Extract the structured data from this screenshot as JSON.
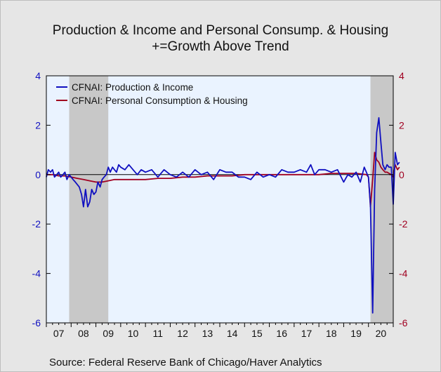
{
  "chart_data": {
    "type": "line",
    "title": "Production & Income and Personal Consump. & Housing",
    "subtitle": "+=Growth Above Trend",
    "source": "Source:  Federal Reserve Bank of Chicago/Haver Analytics",
    "x_tick_labels": [
      "07",
      "08",
      "09",
      "10",
      "11",
      "12",
      "13",
      "14",
      "15",
      "16",
      "17",
      "18",
      "19",
      "20"
    ],
    "xlim": [
      2007.0,
      2021.0
    ],
    "ylim": [
      -6,
      4
    ],
    "y_ticks_left": [
      "4",
      "2",
      "0",
      "-2",
      "-4",
      "-6"
    ],
    "y_ticks_right": [
      "4",
      "2",
      "0",
      "-2",
      "-4",
      "-6"
    ],
    "y_tick_values": [
      4,
      2,
      0,
      -2,
      -4,
      -6
    ],
    "recessions": [
      {
        "start": 2007.92,
        "end": 2009.5
      },
      {
        "start": 2020.08,
        "end": 2021.4
      }
    ],
    "legend_placement": "top-left",
    "colors": {
      "production": "#1010c0",
      "consumption": "#a00020",
      "left_axis": "#1010c0",
      "right_axis": "#a00020",
      "recession": "#c8c8c8",
      "plot_bg": "#eaf3ff"
    },
    "series": [
      {
        "name": "CFNAI: Production & Income",
        "x": [
          2007.0,
          2007.08,
          2007.17,
          2007.25,
          2007.33,
          2007.42,
          2007.5,
          2007.58,
          2007.67,
          2007.75,
          2007.83,
          2007.92,
          2008.0,
          2008.08,
          2008.17,
          2008.25,
          2008.33,
          2008.42,
          2008.5,
          2008.58,
          2008.67,
          2008.75,
          2008.83,
          2008.92,
          2009.0,
          2009.08,
          2009.17,
          2009.25,
          2009.33,
          2009.42,
          2009.5,
          2009.58,
          2009.67,
          2009.75,
          2009.83,
          2009.92,
          2010.0,
          2010.17,
          2010.33,
          2010.5,
          2010.67,
          2010.83,
          2011.0,
          2011.25,
          2011.5,
          2011.75,
          2012.0,
          2012.25,
          2012.5,
          2012.75,
          2013.0,
          2013.25,
          2013.5,
          2013.75,
          2014.0,
          2014.25,
          2014.5,
          2014.75,
          2015.0,
          2015.25,
          2015.5,
          2015.75,
          2016.0,
          2016.25,
          2016.5,
          2016.75,
          2017.0,
          2017.25,
          2017.5,
          2017.67,
          2017.83,
          2018.0,
          2018.25,
          2018.5,
          2018.75,
          2019.0,
          2019.17,
          2019.33,
          2019.5,
          2019.67,
          2019.83,
          2020.0,
          2020.08,
          2020.17,
          2020.25,
          2020.33,
          2020.42,
          2020.5,
          2020.58,
          2020.67,
          2020.75,
          2020.83,
          2020.92,
          2021.0,
          2021.08,
          2021.17,
          2021.25
        ],
        "values": [
          -0.1,
          0.2,
          0.1,
          0.2,
          -0.1,
          0.0,
          0.1,
          -0.1,
          0.0,
          0.1,
          -0.2,
          0.0,
          -0.1,
          -0.2,
          -0.3,
          -0.4,
          -0.5,
          -0.8,
          -1.3,
          -0.6,
          -1.3,
          -1.1,
          -0.6,
          -0.8,
          -0.7,
          -0.3,
          -0.5,
          -0.2,
          -0.1,
          0.0,
          0.3,
          0.1,
          0.3,
          0.2,
          0.1,
          0.4,
          0.3,
          0.2,
          0.4,
          0.2,
          0.0,
          0.2,
          0.1,
          0.2,
          -0.1,
          0.2,
          0.0,
          -0.1,
          0.1,
          -0.1,
          0.2,
          0.0,
          0.1,
          -0.2,
          0.2,
          0.1,
          0.1,
          -0.1,
          -0.1,
          -0.2,
          0.1,
          -0.1,
          0.0,
          -0.1,
          0.2,
          0.1,
          0.1,
          0.2,
          0.1,
          0.4,
          0.0,
          0.2,
          0.2,
          0.1,
          0.2,
          -0.3,
          0.0,
          -0.1,
          0.1,
          -0.3,
          0.3,
          -0.1,
          -1.2,
          -5.6,
          -0.6,
          1.7,
          2.3,
          1.3,
          0.4,
          0.2,
          0.4,
          0.3,
          0.3,
          -1.2,
          0.9,
          0.4,
          0.5
        ]
      },
      {
        "name": "CFNAI: Personal Consumption & Housing",
        "x": [
          2007.0,
          2007.25,
          2007.5,
          2007.75,
          2008.0,
          2008.25,
          2008.5,
          2008.75,
          2009.0,
          2009.25,
          2009.5,
          2009.75,
          2010.0,
          2010.5,
          2011.0,
          2011.5,
          2012.0,
          2012.5,
          2013.0,
          2013.5,
          2014.0,
          2014.5,
          2015.0,
          2015.5,
          2016.0,
          2016.5,
          2017.0,
          2017.5,
          2018.0,
          2018.5,
          2019.0,
          2019.5,
          2019.92,
          2020.0,
          2020.08,
          2020.17,
          2020.25,
          2020.33,
          2020.42,
          2020.5,
          2020.58,
          2020.67,
          2020.75,
          2020.83,
          2020.92,
          2021.0,
          2021.08,
          2021.17,
          2021.25
        ],
        "values": [
          0.0,
          0.0,
          -0.05,
          -0.05,
          -0.1,
          -0.15,
          -0.2,
          -0.25,
          -0.3,
          -0.3,
          -0.25,
          -0.2,
          -0.2,
          -0.2,
          -0.2,
          -0.15,
          -0.15,
          -0.1,
          -0.1,
          -0.05,
          -0.05,
          -0.05,
          0.0,
          0.0,
          0.0,
          0.0,
          0.0,
          0.0,
          0.0,
          0.05,
          0.05,
          0.05,
          0.0,
          -0.1,
          -1.3,
          -0.2,
          0.9,
          0.6,
          0.5,
          0.3,
          0.2,
          0.1,
          0.1,
          0.05,
          0.0,
          -0.1,
          0.4,
          0.2,
          0.3
        ]
      }
    ]
  }
}
